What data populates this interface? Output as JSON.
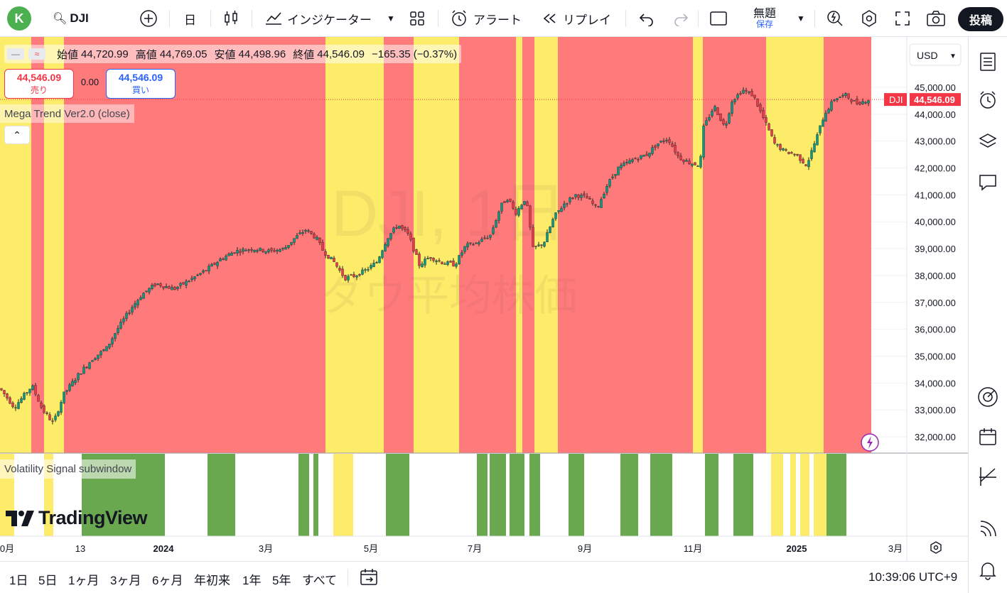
{
  "toolbar": {
    "avatar_letter": "K",
    "symbol": "DJI",
    "interval": "日",
    "indicators_label": "インジケーター",
    "alert_label": "アラート",
    "replay_label": "リプレイ",
    "layout_name": "無題",
    "save_label": "保存",
    "post_label": "投稿"
  },
  "legend": {
    "open_label": "始値",
    "open": "44,720.99",
    "high_label": "高値",
    "high": "44,769.05",
    "low_label": "安値",
    "low": "44,498.96",
    "close_label": "終値",
    "close": "44,546.09",
    "change": "−165.35 (−0.37%)",
    "sell_price": "44,546.09",
    "sell_label": "売り",
    "spread": "0.00",
    "buy_price": "44,546.09",
    "buy_label": "買い",
    "indicator": "Mega Trend Ver2.0 (close)",
    "subwindow": "Volatility Signal subwindow"
  },
  "watermark": {
    "line1": "DJI, 1日",
    "line2": "ダウ平均株価"
  },
  "price_axis": {
    "currency": "USD",
    "symbol_tag": "DJI",
    "last_price": "44,546.09",
    "ticks": [
      "45,000.00",
      "44,000.00",
      "43,000.00",
      "42,000.00",
      "41,000.00",
      "40,000.00",
      "39,000.00",
      "38,000.00",
      "37,000.00",
      "36,000.00",
      "35,000.00",
      "34,000.00",
      "33,000.00",
      "32,000.00"
    ]
  },
  "time_axis": {
    "labels": [
      {
        "text": "0月",
        "bold": false
      },
      {
        "text": "13",
        "bold": false
      },
      {
        "text": "2024",
        "bold": true
      },
      {
        "text": "3月",
        "bold": false
      },
      {
        "text": "5月",
        "bold": false
      },
      {
        "text": "7月",
        "bold": false
      },
      {
        "text": "9月",
        "bold": false
      },
      {
        "text": "11月",
        "bold": false
      },
      {
        "text": "2025",
        "bold": true
      },
      {
        "text": "3月",
        "bold": false
      }
    ]
  },
  "ranges": [
    "1日",
    "5日",
    "1ヶ月",
    "3ヶ月",
    "6ヶ月",
    "年初来",
    "1年",
    "5年",
    "すべて"
  ],
  "clock": "10:39:06 UTC+9",
  "brand": "TradingView",
  "colors": {
    "up": "#089981",
    "down": "#f23645",
    "red_zone": "#ff7b7b",
    "yellow_zone": "#fdec6a",
    "green_signal": "#6aa84f",
    "price_tag": "#f23645"
  },
  "chart_data": {
    "type": "candlestick",
    "title": "DJI, 1日",
    "subtitle": "ダウ平均株価",
    "x_range": [
      "2023-10",
      "2025-02"
    ],
    "ylim": [
      31500,
      45500
    ],
    "last_close": 44546.09,
    "trend_path": [
      [
        0,
        33800
      ],
      [
        20,
        33100
      ],
      [
        45,
        33900
      ],
      [
        60,
        33000
      ],
      [
        75,
        32500
      ],
      [
        90,
        33600
      ],
      [
        110,
        34300
      ],
      [
        130,
        34900
      ],
      [
        150,
        35300
      ],
      [
        165,
        36000
      ],
      [
        185,
        36800
      ],
      [
        200,
        37300
      ],
      [
        220,
        37700
      ],
      [
        245,
        37500
      ],
      [
        265,
        37800
      ],
      [
        290,
        38200
      ],
      [
        310,
        38600
      ],
      [
        330,
        38900
      ],
      [
        355,
        39000
      ],
      [
        380,
        38900
      ],
      [
        400,
        39000
      ],
      [
        415,
        39400
      ],
      [
        430,
        39700
      ],
      [
        445,
        39400
      ],
      [
        455,
        38900
      ],
      [
        470,
        38500
      ],
      [
        485,
        37900
      ],
      [
        500,
        38000
      ],
      [
        515,
        38200
      ],
      [
        530,
        38500
      ],
      [
        545,
        39400
      ],
      [
        560,
        39900
      ],
      [
        575,
        39500
      ],
      [
        590,
        38400
      ],
      [
        605,
        38700
      ],
      [
        620,
        38500
      ],
      [
        640,
        38400
      ],
      [
        655,
        39100
      ],
      [
        670,
        39200
      ],
      [
        690,
        39500
      ],
      [
        705,
        40600
      ],
      [
        715,
        40900
      ],
      [
        725,
        40300
      ],
      [
        740,
        40900
      ],
      [
        750,
        39000
      ],
      [
        765,
        39200
      ],
      [
        780,
        40200
      ],
      [
        795,
        40700
      ],
      [
        810,
        41000
      ],
      [
        825,
        40900
      ],
      [
        840,
        40500
      ],
      [
        855,
        41400
      ],
      [
        870,
        42000
      ],
      [
        890,
        42300
      ],
      [
        910,
        42500
      ],
      [
        925,
        42900
      ],
      [
        940,
        43100
      ],
      [
        955,
        42400
      ],
      [
        970,
        42200
      ],
      [
        985,
        42100
      ],
      [
        990,
        43500
      ],
      [
        1005,
        44300
      ],
      [
        1020,
        43500
      ],
      [
        1030,
        44500
      ],
      [
        1045,
        44900
      ],
      [
        1060,
        44700
      ],
      [
        1075,
        43800
      ],
      [
        1090,
        42900
      ],
      [
        1105,
        42600
      ],
      [
        1120,
        42500
      ],
      [
        1135,
        42100
      ],
      [
        1150,
        43200
      ],
      [
        1160,
        44000
      ],
      [
        1175,
        44600
      ],
      [
        1190,
        44700
      ],
      [
        1205,
        44400
      ],
      [
        1222,
        44546
      ]
    ],
    "trend_zones": [
      [
        "yellow",
        0,
        44
      ],
      [
        "red",
        44,
        62
      ],
      [
        "yellow",
        62,
        90
      ],
      [
        "red",
        90,
        458
      ],
      [
        "yellow",
        458,
        540
      ],
      [
        "red",
        540,
        582
      ],
      [
        "yellow",
        582,
        646
      ],
      [
        "red",
        646,
        726
      ],
      [
        "yellow",
        726,
        735
      ],
      [
        "red",
        735,
        752
      ],
      [
        "yellow",
        752,
        785
      ],
      [
        "red",
        785,
        975
      ],
      [
        "yellow",
        975,
        989
      ],
      [
        "red",
        989,
        1078
      ],
      [
        "yellow",
        1078,
        1159
      ],
      [
        "red",
        1159,
        1226
      ]
    ],
    "volatility_signal": [
      [
        "yellow",
        0,
        20
      ],
      [
        "white",
        20,
        62
      ],
      [
        "yellow",
        62,
        75
      ],
      [
        "white",
        75,
        115
      ],
      [
        "green",
        115,
        232
      ],
      [
        "white",
        232,
        292
      ],
      [
        "green",
        292,
        331
      ],
      [
        "white",
        331,
        420
      ],
      [
        "green",
        420,
        435
      ],
      [
        "white",
        435,
        441
      ],
      [
        "green",
        441,
        448
      ],
      [
        "white",
        448,
        469
      ],
      [
        "yellow",
        469,
        497
      ],
      [
        "white",
        497,
        543
      ],
      [
        "green",
        543,
        576
      ],
      [
        "white",
        576,
        671
      ],
      [
        "green",
        671,
        686
      ],
      [
        "white",
        686,
        689
      ],
      [
        "green",
        689,
        712
      ],
      [
        "white",
        712,
        717
      ],
      [
        "green",
        717,
        738
      ],
      [
        "white",
        738,
        745
      ],
      [
        "green",
        745,
        760
      ],
      [
        "white",
        760,
        800
      ],
      [
        "green",
        800,
        822
      ],
      [
        "white",
        822,
        873
      ],
      [
        "green",
        873,
        898
      ],
      [
        "white",
        898,
        915
      ],
      [
        "green",
        915,
        946
      ],
      [
        "white",
        946,
        992
      ],
      [
        "green",
        992,
        1011
      ],
      [
        "white",
        1011,
        1032
      ],
      [
        "green",
        1032,
        1060
      ],
      [
        "white",
        1060,
        1085
      ],
      [
        "yellow",
        1085,
        1102
      ],
      [
        "white",
        1102,
        1112
      ],
      [
        "yellow",
        1112,
        1120
      ],
      [
        "white",
        1120,
        1126
      ],
      [
        "yellow",
        1126,
        1139
      ],
      [
        "white",
        1139,
        1145
      ],
      [
        "yellow",
        1145,
        1163
      ],
      [
        "green",
        1163,
        1191
      ],
      [
        "white",
        1191,
        1226
      ]
    ]
  }
}
